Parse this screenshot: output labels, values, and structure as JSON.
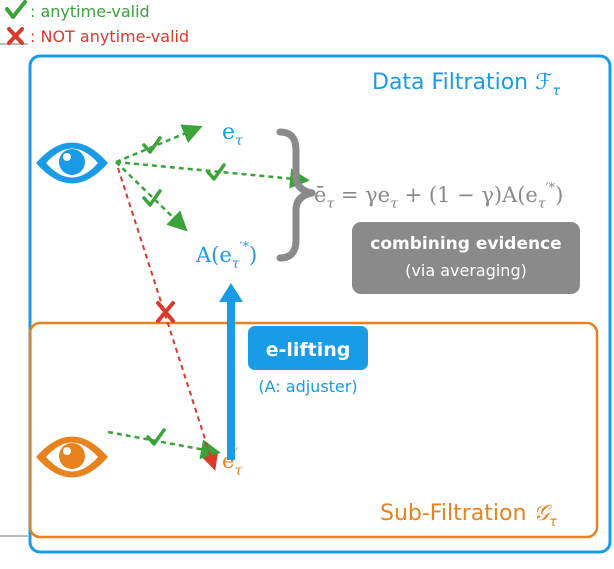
{
  "legend": {
    "valid_label": ": anytime-valid",
    "invalid_label": ": NOT anytime-valid"
  },
  "regions": {
    "data_filtration": "Data Filtration",
    "data_filtration_symbol": "ℱ",
    "sub_filtration": "Sub-Filtration",
    "sub_filtration_symbol": "𝒢"
  },
  "nodes": {
    "e_main": "e",
    "e_lifted": "A(e",
    "e_lifted_close": ")",
    "e_sub": "e"
  },
  "formula": {
    "lhs": "ē",
    "eq": " = γe",
    "mid": " + (1 − γ)A(e",
    "close": ")"
  },
  "boxes": {
    "combining_title": "combining evidence",
    "combining_sub": "(via averaging)",
    "lifting_title": "e-lifting",
    "lifting_sub": "(A: adjuster)"
  },
  "colors": {
    "blue": "#1a9be6",
    "orange": "#e8821e",
    "green": "#3aa33a",
    "red": "#d93a2b",
    "gray": "#8a8a8a"
  }
}
